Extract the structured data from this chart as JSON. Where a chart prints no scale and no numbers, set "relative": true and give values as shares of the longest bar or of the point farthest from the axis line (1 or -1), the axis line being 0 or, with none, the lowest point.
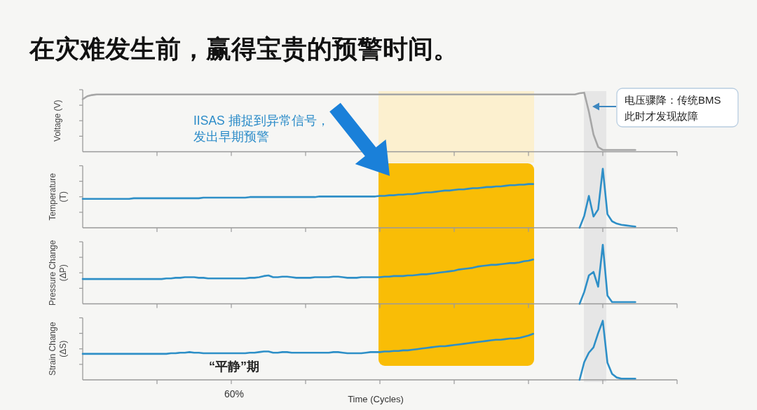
{
  "chart_data": [
    {
      "type": "line",
      "title": "在灾难发生前，赢得宝贵的预警时间。",
      "ylabel": "Voltage (V)",
      "relative": true,
      "color": "#a6a6a6",
      "categories": [
        null,
        null,
        null,
        null,
        null,
        null,
        null,
        null,
        null,
        null,
        null,
        null,
        null,
        null,
        null,
        null,
        null,
        null,
        null,
        null,
        null,
        null,
        null,
        null,
        null,
        null,
        null,
        null,
        null,
        null,
        null,
        null,
        null,
        null,
        null,
        null,
        null,
        null,
        null,
        null,
        null,
        null,
        null,
        null,
        null,
        null,
        null,
        null,
        null,
        null,
        null,
        null,
        null,
        null,
        null,
        null,
        null,
        null,
        null,
        null,
        null,
        null,
        null,
        null,
        null,
        null,
        null,
        null,
        null,
        null,
        null,
        null,
        null,
        null,
        null,
        null,
        null,
        null,
        null,
        null,
        null,
        null,
        null,
        null,
        null,
        null,
        null,
        null,
        null,
        null,
        null,
        null,
        null,
        null,
        null,
        null,
        null,
        null,
        null,
        null,
        null,
        null,
        null,
        null,
        null,
        null,
        null,
        null,
        null,
        null,
        null,
        null,
        null,
        null,
        null,
        null,
        null,
        null,
        null,
        null,
        null,
        null,
        null,
        null,
        null,
        null,
        null,
        null,
        null
      ],
      "values": [
        0.89,
        0.94,
        0.96,
        0.97,
        0.97,
        0.97,
        0.97,
        0.97,
        0.97,
        0.97,
        0.97,
        0.97,
        0.97,
        0.97,
        0.97,
        0.97,
        0.97,
        0.97,
        0.97,
        0.97,
        0.97,
        0.97,
        0.97,
        0.97,
        0.97,
        0.97,
        0.97,
        0.97,
        0.97,
        0.97,
        0.97,
        0.97,
        0.97,
        0.97,
        0.97,
        0.97,
        0.97,
        0.97,
        0.97,
        0.97,
        0.97,
        0.97,
        0.97,
        0.97,
        0.97,
        0.97,
        0.97,
        0.97,
        0.97,
        0.97,
        0.97,
        0.97,
        0.97,
        0.97,
        0.97,
        0.97,
        0.97,
        0.97,
        0.97,
        0.97,
        0.97,
        0.97,
        0.97,
        0.97,
        0.97,
        0.97,
        0.97,
        0.97,
        0.97,
        0.97,
        0.97,
        0.97,
        0.97,
        0.97,
        0.97,
        0.97,
        0.97,
        0.97,
        0.97,
        0.97,
        0.97,
        0.97,
        0.97,
        0.97,
        0.97,
        0.97,
        0.97,
        0.97,
        0.97,
        0.97,
        0.97,
        0.97,
        0.97,
        0.97,
        0.97,
        0.97,
        0.97,
        0.97,
        0.97,
        0.97,
        0.97,
        0.97,
        0.97,
        0.97,
        0.97,
        0.97,
        0.97,
        0.99,
        1.0,
        0.68,
        0.29,
        0.08,
        0.03,
        0.03,
        0.03,
        0.03,
        0.03,
        0.03,
        0.03,
        0.03,
        null,
        null,
        null,
        null,
        null,
        null,
        null,
        null,
        null
      ],
      "annotations": [
        "IISAS 捕捉到异常信号，发出早期预警",
        "电压骤降：传统BMS此时才发现故障"
      ]
    },
    {
      "type": "line",
      "ylabel": "Temperature\n(T)",
      "relative": true,
      "color": "#2e8fc7",
      "categories": [
        null,
        null,
        null,
        null,
        null,
        null,
        null,
        null,
        null,
        null,
        null,
        null,
        null,
        null,
        null,
        null,
        null,
        null,
        null,
        null,
        null,
        null,
        null,
        null,
        null,
        null,
        null,
        null,
        null,
        null,
        null,
        null,
        null,
        null,
        null,
        null,
        null,
        null,
        null,
        null,
        null,
        null,
        null,
        null,
        null,
        null,
        null,
        null,
        null,
        null,
        null,
        null,
        null,
        null,
        null,
        null,
        null,
        null,
        null,
        null,
        null,
        null,
        null,
        null,
        null,
        null,
        null,
        null,
        null,
        null,
        null,
        null,
        null,
        null,
        null,
        null,
        null,
        null,
        null,
        null,
        null,
        null,
        null,
        null,
        null,
        null,
        null,
        null,
        null,
        null,
        null,
        null,
        null,
        null,
        null,
        null,
        null,
        null,
        null,
        null,
        null,
        null,
        null,
        null,
        null,
        null,
        null,
        null,
        null,
        null,
        null,
        null,
        null,
        null,
        null,
        null,
        null,
        null,
        null,
        null,
        null,
        null,
        null,
        null,
        null,
        null,
        null,
        null,
        null
      ],
      "values": [
        0.49,
        0.49,
        0.49,
        0.49,
        0.49,
        0.49,
        0.49,
        0.49,
        0.49,
        0.49,
        0.49,
        0.5,
        0.5,
        0.5,
        0.5,
        0.5,
        0.5,
        0.5,
        0.5,
        0.5,
        0.5,
        0.5,
        0.5,
        0.5,
        0.5,
        0.5,
        0.51,
        0.51,
        0.51,
        0.51,
        0.51,
        0.51,
        0.51,
        0.51,
        0.51,
        0.51,
        0.52,
        0.52,
        0.52,
        0.52,
        0.52,
        0.52,
        0.52,
        0.52,
        0.52,
        0.52,
        0.52,
        0.52,
        0.52,
        0.52,
        0.52,
        0.53,
        0.53,
        0.53,
        0.53,
        0.53,
        0.53,
        0.53,
        0.53,
        0.53,
        0.53,
        0.53,
        0.53,
        0.53,
        0.54,
        0.54,
        0.55,
        0.55,
        0.56,
        0.56,
        0.57,
        0.57,
        0.58,
        0.59,
        0.6,
        0.6,
        0.61,
        0.62,
        0.63,
        0.63,
        0.64,
        0.65,
        0.65,
        0.66,
        0.67,
        0.67,
        0.68,
        0.69,
        0.69,
        0.7,
        0.7,
        0.71,
        0.72,
        0.72,
        0.73,
        0.73,
        0.74,
        0.74,
        null,
        null,
        null,
        null,
        null,
        null,
        null,
        null,
        null,
        0,
        0.2,
        0.54,
        0.19,
        0.31,
        1.0,
        0.23,
        0.11,
        0.07,
        0.05,
        0.04,
        0.03,
        0.02,
        null,
        null,
        null,
        null,
        null,
        null,
        null,
        null,
        null
      ]
    },
    {
      "type": "line",
      "ylabel": "Pressure Change\n(ΔP)",
      "relative": true,
      "color": "#2e8fc7",
      "categories": [
        null,
        null,
        null,
        null,
        null,
        null,
        null,
        null,
        null,
        null,
        null,
        null,
        null,
        null,
        null,
        null,
        null,
        null,
        null,
        null,
        null,
        null,
        null,
        null,
        null,
        null,
        null,
        null,
        null,
        null,
        null,
        null,
        null,
        null,
        null,
        null,
        null,
        null,
        null,
        null,
        null,
        null,
        null,
        null,
        null,
        null,
        null,
        null,
        null,
        null,
        null,
        null,
        null,
        null,
        null,
        null,
        null,
        null,
        null,
        null,
        null,
        null,
        null,
        null,
        null,
        null,
        null,
        null,
        null,
        null,
        null,
        null,
        null,
        null,
        null,
        null,
        null,
        null,
        null,
        null,
        null,
        null,
        null,
        null,
        null,
        null,
        null,
        null,
        null,
        null,
        null,
        null,
        null,
        null,
        null,
        null,
        null,
        null,
        null,
        null,
        null,
        null,
        null,
        null,
        null,
        null,
        null,
        null,
        null,
        null,
        null,
        null,
        null,
        null,
        null,
        null,
        null,
        null,
        null,
        null,
        null,
        null,
        null,
        null,
        null,
        null,
        null,
        null,
        null
      ],
      "values": [
        0.42,
        0.42,
        0.42,
        0.42,
        0.42,
        0.42,
        0.42,
        0.42,
        0.42,
        0.42,
        0.42,
        0.42,
        0.42,
        0.42,
        0.42,
        0.42,
        0.42,
        0.42,
        0.43,
        0.43,
        0.44,
        0.44,
        0.45,
        0.45,
        0.45,
        0.44,
        0.44,
        0.43,
        0.43,
        0.43,
        0.43,
        0.43,
        0.43,
        0.43,
        0.43,
        0.43,
        0.44,
        0.44,
        0.45,
        0.47,
        0.48,
        0.45,
        0.45,
        0.46,
        0.46,
        0.45,
        0.44,
        0.44,
        0.44,
        0.44,
        0.45,
        0.45,
        0.45,
        0.45,
        0.46,
        0.46,
        0.45,
        0.44,
        0.44,
        0.44,
        0.45,
        0.45,
        0.45,
        0.45,
        0.45,
        0.46,
        0.46,
        0.47,
        0.47,
        0.47,
        0.48,
        0.48,
        0.49,
        0.5,
        0.5,
        0.51,
        0.52,
        0.53,
        0.54,
        0.55,
        0.56,
        0.58,
        0.59,
        0.6,
        0.61,
        0.63,
        0.64,
        0.65,
        0.66,
        0.66,
        0.67,
        0.68,
        0.69,
        0.69,
        0.7,
        0.72,
        0.73,
        0.75,
        null,
        null,
        null,
        null,
        null,
        null,
        null,
        null,
        null,
        0,
        0.2,
        0.48,
        0.54,
        0.29,
        1.0,
        0.14,
        0.03,
        0.03,
        0.03,
        0.03,
        0.03,
        0.03,
        null,
        null,
        null,
        null,
        null,
        null,
        null,
        null,
        null
      ]
    },
    {
      "type": "line",
      "ylabel": "Strain Change\n(ΔS)",
      "xlabel": "Time (Cycles)",
      "relative": true,
      "color": "#2e8fc7",
      "categories": [
        null,
        null,
        null,
        null,
        null,
        null,
        null,
        null,
        null,
        null,
        null,
        null,
        null,
        null,
        null,
        null,
        null,
        null,
        null,
        null,
        null,
        null,
        null,
        null,
        null,
        null,
        null,
        null,
        null,
        null,
        null,
        null,
        null,
        null,
        null,
        null,
        null,
        null,
        null,
        null,
        null,
        null,
        null,
        null,
        null,
        null,
        null,
        null,
        null,
        null,
        null,
        null,
        null,
        null,
        null,
        null,
        null,
        null,
        null,
        null,
        null,
        null,
        null,
        null,
        null,
        null,
        null,
        null,
        null,
        null,
        null,
        null,
        null,
        null,
        null,
        null,
        null,
        null,
        null,
        null,
        null,
        null,
        null,
        null,
        null,
        null,
        null,
        null,
        null,
        null,
        null,
        null,
        null,
        null,
        null,
        null,
        null,
        null,
        null,
        null,
        null,
        null,
        null,
        null,
        null,
        null,
        null,
        null,
        null,
        null,
        null,
        null,
        null,
        null,
        null,
        null,
        null,
        null,
        null,
        null,
        null,
        null,
        null,
        null,
        null,
        null,
        null,
        null,
        null
      ],
      "values": [
        0.44,
        0.44,
        0.44,
        0.44,
        0.44,
        0.44,
        0.44,
        0.44,
        0.44,
        0.44,
        0.44,
        0.44,
        0.44,
        0.44,
        0.44,
        0.44,
        0.44,
        0.44,
        0.44,
        0.45,
        0.45,
        0.46,
        0.46,
        0.47,
        0.46,
        0.46,
        0.45,
        0.45,
        0.45,
        0.45,
        0.45,
        0.45,
        0.45,
        0.45,
        0.45,
        0.45,
        0.46,
        0.46,
        0.47,
        0.48,
        0.48,
        0.46,
        0.46,
        0.47,
        0.47,
        0.46,
        0.46,
        0.46,
        0.46,
        0.46,
        0.46,
        0.46,
        0.46,
        0.46,
        0.47,
        0.47,
        0.46,
        0.45,
        0.45,
        0.45,
        0.45,
        0.46,
        0.47,
        0.47,
        0.47,
        0.48,
        0.48,
        0.49,
        0.49,
        0.5,
        0.5,
        0.51,
        0.52,
        0.53,
        0.54,
        0.55,
        0.56,
        0.57,
        0.57,
        0.58,
        0.59,
        0.6,
        0.61,
        0.62,
        0.63,
        0.64,
        0.65,
        0.66,
        0.67,
        0.68,
        0.68,
        0.69,
        0.7,
        0.7,
        0.71,
        0.73,
        0.75,
        0.78,
        null,
        null,
        null,
        null,
        null,
        null,
        null,
        null,
        null,
        0,
        0.3,
        0.46,
        0.55,
        0.79,
        1.0,
        0.29,
        0.1,
        0.04,
        0.02,
        0.02,
        0.02,
        0.02,
        null,
        null,
        null,
        null,
        null,
        null,
        null,
        null,
        null
      ],
      "annotations": [
        "“平静”期",
        "60%"
      ]
    }
  ]
}
